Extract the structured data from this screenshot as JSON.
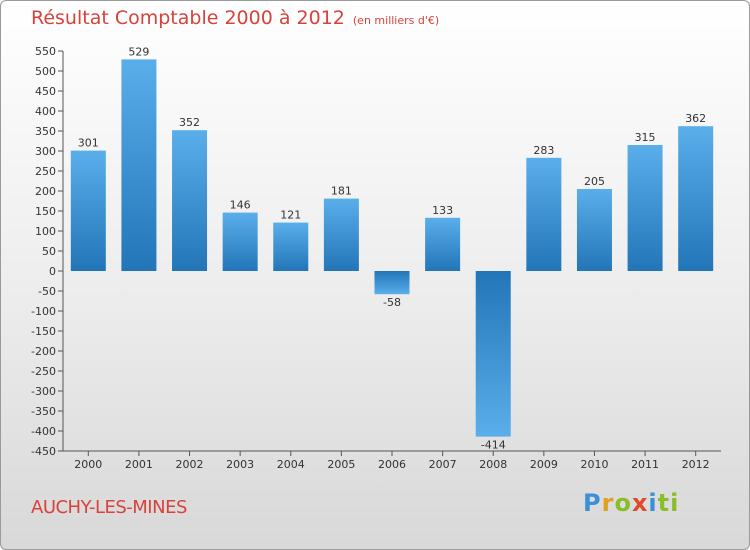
{
  "header": {
    "title": "Résultat Comptable 2000 à 2012",
    "subtitle": "(en milliers d'€)"
  },
  "commune": "AUCHY-LES-MINES",
  "brand": {
    "letters": [
      "P",
      "r",
      "o",
      "x",
      "i",
      "ti"
    ]
  },
  "colors": {
    "title": "#d8423a",
    "bar_light": "#5aaeea",
    "bar_dark": "#2276b8"
  },
  "chart_data": {
    "type": "bar",
    "title": "Résultat Comptable 2000 à 2012",
    "subtitle": "(en milliers d'€)",
    "xlabel": "",
    "ylabel": "",
    "categories": [
      "2000",
      "2001",
      "2002",
      "2003",
      "2004",
      "2005",
      "2006",
      "2007",
      "2008",
      "2009",
      "2010",
      "2011",
      "2012"
    ],
    "values": [
      301,
      529,
      352,
      146,
      121,
      181,
      -58,
      133,
      -414,
      283,
      205,
      315,
      362
    ],
    "ylim": [
      -450,
      550
    ],
    "ytick_step": 50,
    "grid": false
  }
}
